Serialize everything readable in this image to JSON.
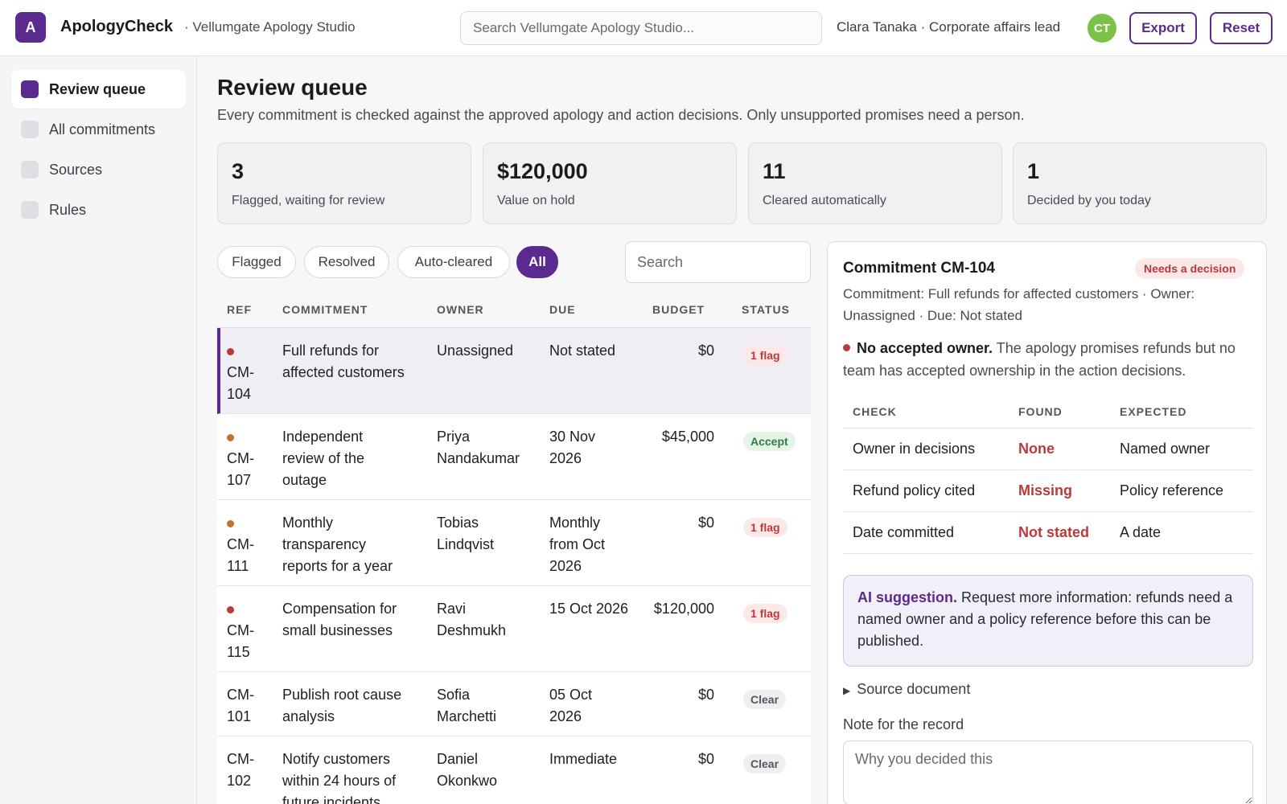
{
  "header": {
    "logo_letter": "A",
    "app_name": "ApologyCheck",
    "workspace": "· Vellumgate Apology Studio",
    "search_placeholder": "Search Vellumgate Apology Studio...",
    "user": "Clara Tanaka · Corporate affairs lead",
    "avatar_initials": "CT",
    "export_label": "Export",
    "reset_label": "Reset"
  },
  "sidebar": {
    "items": [
      {
        "label": "Review queue",
        "active": true
      },
      {
        "label": "All commitments",
        "active": false
      },
      {
        "label": "Sources",
        "active": false
      },
      {
        "label": "Rules",
        "active": false
      }
    ]
  },
  "main": {
    "title": "Review queue",
    "subtitle": "Every commitment is checked against the approved apology and action decisions. Only unsupported promises need a person.",
    "stats": [
      {
        "value": "3",
        "label": "Flagged, waiting for review"
      },
      {
        "value": "$120,000",
        "label": "Value on hold"
      },
      {
        "value": "11",
        "label": "Cleared automatically"
      },
      {
        "value": "1",
        "label": "Decided by you today"
      }
    ],
    "filters": [
      {
        "label": "Flagged",
        "active": false
      },
      {
        "label": "Resolved",
        "active": false
      },
      {
        "label": "Auto-cleared",
        "active": false
      },
      {
        "label": "All",
        "active": true
      }
    ],
    "table_search_placeholder": "Search",
    "columns": [
      "REF",
      "COMMITMENT",
      "OWNER",
      "DUE",
      "BUDGET",
      "STATUS"
    ],
    "rows": [
      {
        "ref": "CM-104",
        "ref_lines": [
          "CM-",
          "104"
        ],
        "dot": "red",
        "commitment": [
          "Full refunds for",
          "affected customers"
        ],
        "owner": [
          "Unassigned"
        ],
        "due": [
          "Not stated"
        ],
        "budget": "$0",
        "status": "1 flag",
        "status_type": "flag",
        "selected": true
      },
      {
        "ref": "CM-107",
        "ref_lines": [
          "CM-",
          "107"
        ],
        "dot": "orange",
        "commitment": [
          "Independent",
          "review of the",
          "outage"
        ],
        "owner": [
          "Priya",
          "Nandakumar"
        ],
        "due": [
          "30 Nov",
          "2026"
        ],
        "budget": "$45,000",
        "status": "Accept",
        "status_type": "accept",
        "selected": false
      },
      {
        "ref": "CM-111",
        "ref_lines": [
          "CM-",
          "111"
        ],
        "dot": "orange",
        "commitment": [
          "Monthly",
          "transparency",
          "reports for a year"
        ],
        "owner": [
          "Tobias",
          "Lindqvist"
        ],
        "due": [
          "Monthly",
          "from Oct",
          "2026"
        ],
        "budget": "$0",
        "status": "1 flag",
        "status_type": "flag",
        "selected": false
      },
      {
        "ref": "CM-115",
        "ref_lines": [
          "CM-",
          "115"
        ],
        "dot": "red",
        "commitment": [
          "Compensation for",
          "small businesses"
        ],
        "owner": [
          "Ravi",
          "Deshmukh"
        ],
        "due": [
          "15 Oct 2026"
        ],
        "budget": "$120,000",
        "status": "1 flag",
        "status_type": "flag",
        "selected": false
      },
      {
        "ref": "CM-101",
        "ref_lines": [
          "CM-",
          "101"
        ],
        "dot": null,
        "commitment": [
          "Publish root cause",
          "analysis"
        ],
        "owner": [
          "Sofia",
          "Marchetti"
        ],
        "due": [
          "05 Oct",
          "2026"
        ],
        "budget": "$0",
        "status": "Clear",
        "status_type": "clear",
        "selected": false
      },
      {
        "ref": "CM-102",
        "ref_lines": [
          "CM-",
          "102"
        ],
        "dot": null,
        "commitment": [
          "Notify customers",
          "within 24 hours of",
          "future incidents"
        ],
        "owner": [
          "Daniel",
          "Okonkwo"
        ],
        "due": [
          "Immediate"
        ],
        "budget": "$0",
        "status": "Clear",
        "status_type": "clear",
        "selected": false
      }
    ]
  },
  "detail": {
    "title": "Commitment CM-104",
    "badge": "Needs a decision",
    "meta": "Commitment: Full refunds for affected customers · Owner: Unassigned · Due: Not stated",
    "issue_title": "No accepted owner.",
    "issue_text": "The apology promises refunds but no team has accepted ownership in the action decisions.",
    "check_columns": [
      "CHECK",
      "FOUND",
      "EXPECTED"
    ],
    "checks": [
      {
        "check": "Owner in decisions",
        "found": "None",
        "expected": "Named owner"
      },
      {
        "check": "Refund policy cited",
        "found": "Missing",
        "expected": "Policy reference"
      },
      {
        "check": "Date committed",
        "found": "Not stated",
        "expected": "A date"
      }
    ],
    "ai_title": "AI suggestion.",
    "ai_text": "Request more information: refunds need a named owner and a policy reference before this can be published.",
    "source_label": "Source document",
    "note_label": "Note for the record",
    "note_placeholder": "Why you decided this"
  },
  "colors": {
    "accent": "#5b2a8e",
    "flag": "#b93a3a",
    "warning": "#c0742a",
    "success": "#2e7d40",
    "avatar": "#7cc24a"
  }
}
